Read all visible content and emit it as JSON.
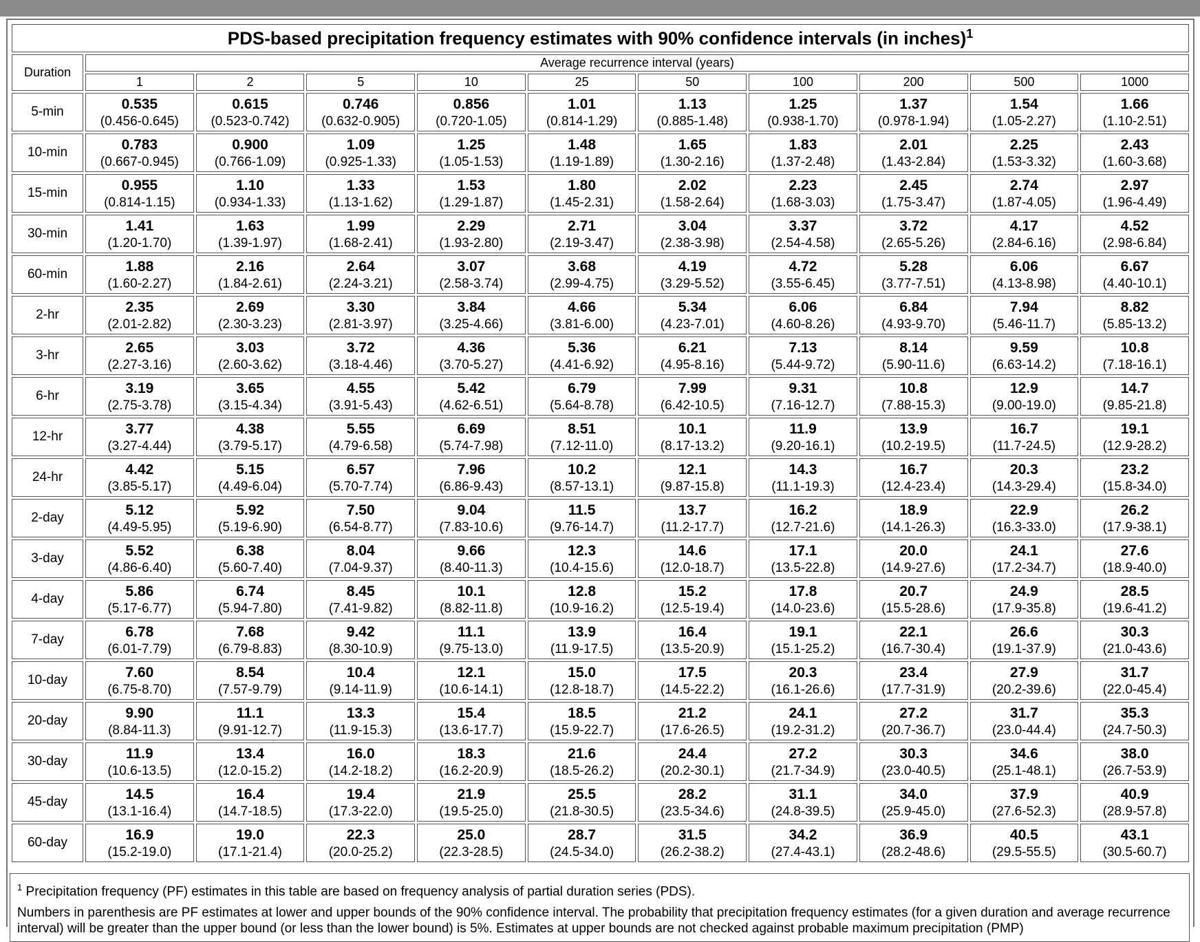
{
  "table": {
    "title": "PDS-based precipitation frequency estimates with 90% confidence intervals (in inches)",
    "title_note": "1",
    "duration_header": "Duration",
    "interval_header": "Average recurrence interval (years)",
    "columns": [
      "1",
      "2",
      "5",
      "10",
      "25",
      "50",
      "100",
      "200",
      "500",
      "1000"
    ],
    "rows": [
      {
        "duration": "5-min",
        "estimates": [
          "0.535",
          "0.615",
          "0.746",
          "0.856",
          "1.01",
          "1.13",
          "1.25",
          "1.37",
          "1.54",
          "1.66"
        ],
        "intervals": [
          "(0.456-0.645)",
          "(0.523-0.742)",
          "(0.632-0.905)",
          "(0.720-1.05)",
          "(0.814-1.29)",
          "(0.885-1.48)",
          "(0.938-1.70)",
          "(0.978-1.94)",
          "(1.05-2.27)",
          "(1.10-2.51)"
        ]
      },
      {
        "duration": "10-min",
        "estimates": [
          "0.783",
          "0.900",
          "1.09",
          "1.25",
          "1.48",
          "1.65",
          "1.83",
          "2.01",
          "2.25",
          "2.43"
        ],
        "intervals": [
          "(0.667-0.945)",
          "(0.766-1.09)",
          "(0.925-1.33)",
          "(1.05-1.53)",
          "(1.19-1.89)",
          "(1.30-2.16)",
          "(1.37-2.48)",
          "(1.43-2.84)",
          "(1.53-3.32)",
          "(1.60-3.68)"
        ]
      },
      {
        "duration": "15-min",
        "estimates": [
          "0.955",
          "1.10",
          "1.33",
          "1.53",
          "1.80",
          "2.02",
          "2.23",
          "2.45",
          "2.74",
          "2.97"
        ],
        "intervals": [
          "(0.814-1.15)",
          "(0.934-1.33)",
          "(1.13-1.62)",
          "(1.29-1.87)",
          "(1.45-2.31)",
          "(1.58-2.64)",
          "(1.68-3.03)",
          "(1.75-3.47)",
          "(1.87-4.05)",
          "(1.96-4.49)"
        ]
      },
      {
        "duration": "30-min",
        "estimates": [
          "1.41",
          "1.63",
          "1.99",
          "2.29",
          "2.71",
          "3.04",
          "3.37",
          "3.72",
          "4.17",
          "4.52"
        ],
        "intervals": [
          "(1.20-1.70)",
          "(1.39-1.97)",
          "(1.68-2.41)",
          "(1.93-2.80)",
          "(2.19-3.47)",
          "(2.38-3.98)",
          "(2.54-4.58)",
          "(2.65-5.26)",
          "(2.84-6.16)",
          "(2.98-6.84)"
        ]
      },
      {
        "duration": "60-min",
        "estimates": [
          "1.88",
          "2.16",
          "2.64",
          "3.07",
          "3.68",
          "4.19",
          "4.72",
          "5.28",
          "6.06",
          "6.67"
        ],
        "intervals": [
          "(1.60-2.27)",
          "(1.84-2.61)",
          "(2.24-3.21)",
          "(2.58-3.74)",
          "(2.99-4.75)",
          "(3.29-5.52)",
          "(3.55-6.45)",
          "(3.77-7.51)",
          "(4.13-8.98)",
          "(4.40-10.1)"
        ]
      },
      {
        "duration": "2-hr",
        "estimates": [
          "2.35",
          "2.69",
          "3.30",
          "3.84",
          "4.66",
          "5.34",
          "6.06",
          "6.84",
          "7.94",
          "8.82"
        ],
        "intervals": [
          "(2.01-2.82)",
          "(2.30-3.23)",
          "(2.81-3.97)",
          "(3.25-4.66)",
          "(3.81-6.00)",
          "(4.23-7.01)",
          "(4.60-8.26)",
          "(4.93-9.70)",
          "(5.46-11.7)",
          "(5.85-13.2)"
        ]
      },
      {
        "duration": "3-hr",
        "estimates": [
          "2.65",
          "3.03",
          "3.72",
          "4.36",
          "5.36",
          "6.21",
          "7.13",
          "8.14",
          "9.59",
          "10.8"
        ],
        "intervals": [
          "(2.27-3.16)",
          "(2.60-3.62)",
          "(3.18-4.46)",
          "(3.70-5.27)",
          "(4.41-6.92)",
          "(4.95-8.16)",
          "(5.44-9.72)",
          "(5.90-11.6)",
          "(6.63-14.2)",
          "(7.18-16.1)"
        ]
      },
      {
        "duration": "6-hr",
        "estimates": [
          "3.19",
          "3.65",
          "4.55",
          "5.42",
          "6.79",
          "7.99",
          "9.31",
          "10.8",
          "12.9",
          "14.7"
        ],
        "intervals": [
          "(2.75-3.78)",
          "(3.15-4.34)",
          "(3.91-5.43)",
          "(4.62-6.51)",
          "(5.64-8.78)",
          "(6.42-10.5)",
          "(7.16-12.7)",
          "(7.88-15.3)",
          "(9.00-19.0)",
          "(9.85-21.8)"
        ]
      },
      {
        "duration": "12-hr",
        "estimates": [
          "3.77",
          "4.38",
          "5.55",
          "6.69",
          "8.51",
          "10.1",
          "11.9",
          "13.9",
          "16.7",
          "19.1"
        ],
        "intervals": [
          "(3.27-4.44)",
          "(3.79-5.17)",
          "(4.79-6.58)",
          "(5.74-7.98)",
          "(7.12-11.0)",
          "(8.17-13.2)",
          "(9.20-16.1)",
          "(10.2-19.5)",
          "(11.7-24.5)",
          "(12.9-28.2)"
        ]
      },
      {
        "duration": "24-hr",
        "estimates": [
          "4.42",
          "5.15",
          "6.57",
          "7.96",
          "10.2",
          "12.1",
          "14.3",
          "16.7",
          "20.3",
          "23.2"
        ],
        "intervals": [
          "(3.85-5.17)",
          "(4.49-6.04)",
          "(5.70-7.74)",
          "(6.86-9.43)",
          "(8.57-13.1)",
          "(9.87-15.8)",
          "(11.1-19.3)",
          "(12.4-23.4)",
          "(14.3-29.4)",
          "(15.8-34.0)"
        ]
      },
      {
        "duration": "2-day",
        "estimates": [
          "5.12",
          "5.92",
          "7.50",
          "9.04",
          "11.5",
          "13.7",
          "16.2",
          "18.9",
          "22.9",
          "26.2"
        ],
        "intervals": [
          "(4.49-5.95)",
          "(5.19-6.90)",
          "(6.54-8.77)",
          "(7.83-10.6)",
          "(9.76-14.7)",
          "(11.2-17.7)",
          "(12.7-21.6)",
          "(14.1-26.3)",
          "(16.3-33.0)",
          "(17.9-38.1)"
        ]
      },
      {
        "duration": "3-day",
        "estimates": [
          "5.52",
          "6.38",
          "8.04",
          "9.66",
          "12.3",
          "14.6",
          "17.1",
          "20.0",
          "24.1",
          "27.6"
        ],
        "intervals": [
          "(4.86-6.40)",
          "(5.60-7.40)",
          "(7.04-9.37)",
          "(8.40-11.3)",
          "(10.4-15.6)",
          "(12.0-18.7)",
          "(13.5-22.8)",
          "(14.9-27.6)",
          "(17.2-34.7)",
          "(18.9-40.0)"
        ]
      },
      {
        "duration": "4-day",
        "estimates": [
          "5.86",
          "6.74",
          "8.45",
          "10.1",
          "12.8",
          "15.2",
          "17.8",
          "20.7",
          "24.9",
          "28.5"
        ],
        "intervals": [
          "(5.17-6.77)",
          "(5.94-7.80)",
          "(7.41-9.82)",
          "(8.82-11.8)",
          "(10.9-16.2)",
          "(12.5-19.4)",
          "(14.0-23.6)",
          "(15.5-28.6)",
          "(17.9-35.8)",
          "(19.6-41.2)"
        ]
      },
      {
        "duration": "7-day",
        "estimates": [
          "6.78",
          "7.68",
          "9.42",
          "11.1",
          "13.9",
          "16.4",
          "19.1",
          "22.1",
          "26.6",
          "30.3"
        ],
        "intervals": [
          "(6.01-7.79)",
          "(6.79-8.83)",
          "(8.30-10.9)",
          "(9.75-13.0)",
          "(11.9-17.5)",
          "(13.5-20.9)",
          "(15.1-25.2)",
          "(16.7-30.4)",
          "(19.1-37.9)",
          "(21.0-43.6)"
        ]
      },
      {
        "duration": "10-day",
        "estimates": [
          "7.60",
          "8.54",
          "10.4",
          "12.1",
          "15.0",
          "17.5",
          "20.3",
          "23.4",
          "27.9",
          "31.7"
        ],
        "intervals": [
          "(6.75-8.70)",
          "(7.57-9.79)",
          "(9.14-11.9)",
          "(10.6-14.1)",
          "(12.8-18.7)",
          "(14.5-22.2)",
          "(16.1-26.6)",
          "(17.7-31.9)",
          "(20.2-39.6)",
          "(22.0-45.4)"
        ]
      },
      {
        "duration": "20-day",
        "estimates": [
          "9.90",
          "11.1",
          "13.3",
          "15.4",
          "18.5",
          "21.2",
          "24.1",
          "27.2",
          "31.7",
          "35.3"
        ],
        "intervals": [
          "(8.84-11.3)",
          "(9.91-12.7)",
          "(11.9-15.3)",
          "(13.6-17.7)",
          "(15.9-22.7)",
          "(17.6-26.5)",
          "(19.2-31.2)",
          "(20.7-36.7)",
          "(23.0-44.4)",
          "(24.7-50.3)"
        ]
      },
      {
        "duration": "30-day",
        "estimates": [
          "11.9",
          "13.4",
          "16.0",
          "18.3",
          "21.6",
          "24.4",
          "27.2",
          "30.3",
          "34.6",
          "38.0"
        ],
        "intervals": [
          "(10.6-13.5)",
          "(12.0-15.2)",
          "(14.2-18.2)",
          "(16.2-20.9)",
          "(18.5-26.2)",
          "(20.2-30.1)",
          "(21.7-34.9)",
          "(23.0-40.5)",
          "(25.1-48.1)",
          "(26.7-53.9)"
        ]
      },
      {
        "duration": "45-day",
        "estimates": [
          "14.5",
          "16.4",
          "19.4",
          "21.9",
          "25.5",
          "28.2",
          "31.1",
          "34.0",
          "37.9",
          "40.9"
        ],
        "intervals": [
          "(13.1-16.4)",
          "(14.7-18.5)",
          "(17.3-22.0)",
          "(19.5-25.0)",
          "(21.8-30.5)",
          "(23.5-34.6)",
          "(24.8-39.5)",
          "(25.9-45.0)",
          "(27.6-52.3)",
          "(28.9-57.8)"
        ]
      },
      {
        "duration": "60-day",
        "estimates": [
          "16.9",
          "19.0",
          "22.3",
          "25.0",
          "28.7",
          "31.5",
          "34.2",
          "36.9",
          "40.5",
          "43.1"
        ],
        "intervals": [
          "(15.2-19.0)",
          "(17.1-21.4)",
          "(20.0-25.2)",
          "(22.3-28.5)",
          "(24.5-34.0)",
          "(26.2-38.2)",
          "(27.4-43.1)",
          "(28.2-48.6)",
          "(29.5-55.5)",
          "(30.5-60.7)"
        ]
      }
    ]
  },
  "footnote": {
    "marker": "1",
    "text": "Precipitation frequency (PF) estimates in this table are based on frequency analysis of partial duration series (PDS).",
    "text2": "Numbers in parenthesis are PF estimates at lower and upper bounds of the 90% confidence interval. The probability that precipitation frequency estimates (for a given duration and average recurrence interval) will be greater than the upper bound (or less than the lower bound) is 5%. Estimates at upper bounds are not checked against probable maximum precipitation (PMP)"
  }
}
